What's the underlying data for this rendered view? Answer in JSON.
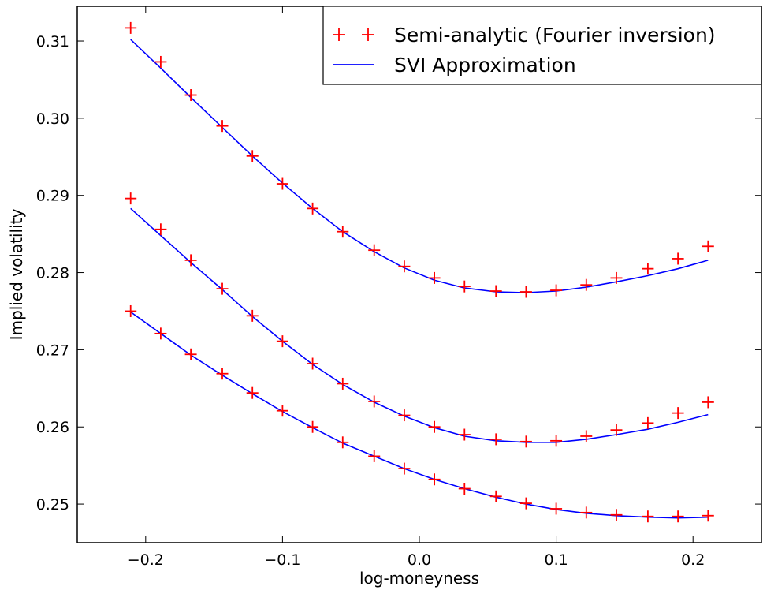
{
  "chart_data": {
    "type": "line",
    "title": "",
    "xlabel": "log-moneyness",
    "ylabel": "Implied volatility",
    "xlim": [
      -0.25,
      0.25
    ],
    "ylim": [
      0.245,
      0.3145
    ],
    "x_ticks": [
      -0.2,
      -0.1,
      0.0,
      0.1,
      0.2
    ],
    "x_tick_labels": [
      "−0.2",
      "−0.1",
      "0.0",
      "0.1",
      "0.2"
    ],
    "y_ticks": [
      0.25,
      0.26,
      0.27,
      0.28,
      0.29,
      0.3,
      0.31
    ],
    "y_tick_labels": [
      "0.25",
      "0.26",
      "0.27",
      "0.28",
      "0.29",
      "0.30",
      "0.31"
    ],
    "grid": false,
    "legend_position": "top-right",
    "legend": [
      {
        "label": "Semi-analytic (Fourier inversion)",
        "marker": "+",
        "color": "#ff0000"
      },
      {
        "label": "SVI Approximation",
        "marker": "line",
        "color": "#0000ff"
      }
    ],
    "x": [
      -0.211,
      -0.189,
      -0.167,
      -0.144,
      -0.122,
      -0.1,
      -0.078,
      -0.056,
      -0.033,
      -0.011,
      0.011,
      0.033,
      0.056,
      0.078,
      0.1,
      0.122,
      0.144,
      0.167,
      0.189,
      0.211
    ],
    "series": [
      {
        "kind": "markers",
        "color": "#ff0000",
        "values": [
          0.3117,
          0.3073,
          0.303,
          0.299,
          0.2951,
          0.2915,
          0.2883,
          0.2853,
          0.2829,
          0.2808,
          0.2793,
          0.2782,
          0.2776,
          0.2775,
          0.2777,
          0.2784,
          0.2793,
          0.2805,
          0.2818,
          0.2834
        ]
      },
      {
        "kind": "markers",
        "color": "#ff0000",
        "values": [
          0.2896,
          0.2856,
          0.2816,
          0.2779,
          0.2744,
          0.2711,
          0.2682,
          0.2656,
          0.2633,
          0.2615,
          0.26,
          0.259,
          0.2584,
          0.2581,
          0.2582,
          0.2588,
          0.2596,
          0.2605,
          0.2618,
          0.2632
        ]
      },
      {
        "kind": "markers",
        "color": "#ff0000",
        "values": [
          0.275,
          0.2721,
          0.2694,
          0.2669,
          0.2644,
          0.2621,
          0.26,
          0.258,
          0.2562,
          0.2546,
          0.2532,
          0.252,
          0.251,
          0.2501,
          0.2494,
          0.2489,
          0.2486,
          0.2484,
          0.2484,
          0.2485
        ]
      },
      {
        "kind": "line",
        "color": "#0000ff",
        "values": [
          0.3102,
          0.3065,
          0.3027,
          0.2988,
          0.2951,
          0.2916,
          0.2883,
          0.2853,
          0.2827,
          0.2806,
          0.279,
          0.278,
          0.2775,
          0.2774,
          0.2776,
          0.2781,
          0.2788,
          0.2796,
          0.2805,
          0.2816
        ]
      },
      {
        "kind": "line",
        "color": "#0000ff",
        "values": [
          0.2883,
          0.2848,
          0.2813,
          0.2778,
          0.2743,
          0.2711,
          0.2681,
          0.2655,
          0.2632,
          0.2614,
          0.2599,
          0.2588,
          0.2582,
          0.258,
          0.258,
          0.2584,
          0.259,
          0.2597,
          0.2606,
          0.2616
        ]
      },
      {
        "kind": "line",
        "color": "#0000ff",
        "values": [
          0.2749,
          0.2721,
          0.2693,
          0.2667,
          0.2643,
          0.262,
          0.2599,
          0.2579,
          0.2562,
          0.2546,
          0.2532,
          0.252,
          0.2509,
          0.25,
          0.2493,
          0.2488,
          0.2485,
          0.2483,
          0.2482,
          0.2483
        ]
      }
    ]
  }
}
